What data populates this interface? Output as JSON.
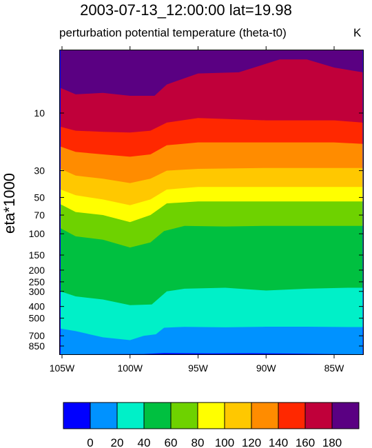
{
  "header": {
    "title": "2003-07-13_12:00:00  lat=19.98",
    "subtitle": "perturbation potential temperature (theta-t0)",
    "units": "K"
  },
  "chart_data": {
    "type": "heatmap",
    "title": "2003-07-13_12:00:00  lat=19.98",
    "subtitle": "perturbation potential temperature (theta-t0)",
    "units": "K",
    "xlabel": "",
    "ylabel": "eta*1000",
    "x_ticks": [
      "105W",
      "100W",
      "95W",
      "90W",
      "85W"
    ],
    "x_tick_values": [
      -105,
      -100,
      -95,
      -90,
      -85
    ],
    "xlim": [
      -105.1,
      -82.9
    ],
    "y_ticks": [
      "10",
      "30",
      "50",
      "70",
      "100",
      "150",
      "200",
      "250",
      "300",
      "400",
      "500",
      "700",
      "850"
    ],
    "y_tick_values": [
      10,
      30,
      50,
      70,
      100,
      150,
      200,
      250,
      300,
      400,
      500,
      700,
      850
    ],
    "ylim": [
      995,
      3
    ],
    "y_scale": "log",
    "contour_levels": [
      0,
      20,
      40,
      60,
      80,
      100,
      120,
      140,
      160,
      180
    ],
    "colorbar_labels": [
      "0",
      "20",
      "40",
      "60",
      "80",
      "100",
      "120",
      "140",
      "160",
      "180"
    ],
    "colorbar_colors": [
      "#0000ff",
      "#0092ff",
      "#00f0c8",
      "#00c040",
      "#6ed200",
      "#ffff00",
      "#ffc800",
      "#ff8c00",
      "#ff2800",
      "#c0003a",
      "#5a0082"
    ],
    "contour_boundaries": [
      {
        "level": 0,
        "x": [
          -105.1,
          -99,
          -97.5,
          -94,
          -91,
          -88,
          -85,
          -82.9
        ],
        "y": [
          995,
          990,
          972,
          978,
          976,
          982,
          992,
          995
        ]
      },
      {
        "level": 20,
        "x": [
          -105.1,
          -104,
          -102,
          -100,
          -99,
          -98.1,
          -97.5,
          -96,
          -93,
          -90,
          -87,
          -84,
          -82.9
        ],
        "y": [
          610,
          640,
          720,
          760,
          700,
          680,
          600,
          590,
          595,
          588,
          588,
          592,
          592
        ]
      },
      {
        "level": 40,
        "x": [
          -105.1,
          -104,
          -102,
          -100,
          -98.4,
          -97.3,
          -96,
          -93,
          -90,
          -87,
          -84,
          -82.9
        ],
        "y": [
          300,
          330,
          350,
          390,
          385,
          300,
          285,
          280,
          295,
          285,
          280,
          280
        ]
      },
      {
        "level": 60,
        "x": [
          -105.1,
          -104,
          -102,
          -100,
          -98.5,
          -97.5,
          -96,
          -93,
          -90,
          -87,
          -84,
          -82.9
        ],
        "y": [
          90,
          105,
          112,
          130,
          118,
          95,
          86,
          87,
          86,
          86,
          86,
          86
        ]
      },
      {
        "level": 80,
        "x": [
          -105.1,
          -104,
          -102,
          -100,
          -98.5,
          -97.3,
          -95,
          -90,
          -85,
          -82.9
        ],
        "y": [
          57,
          66,
          70,
          80,
          70,
          56,
          54,
          54,
          54,
          54
        ]
      },
      {
        "level": 100,
        "x": [
          -105.1,
          -104,
          -102,
          -100,
          -98.5,
          -97.3,
          -95,
          -90,
          -85,
          -82.9
        ],
        "y": [
          43,
          48,
          52,
          58,
          52,
          43,
          41,
          41,
          41,
          41
        ]
      },
      {
        "level": 120,
        "x": [
          -105.1,
          -104,
          -102,
          -100,
          -98.5,
          -97.3,
          -95,
          -90,
          -85,
          -82.9
        ],
        "y": [
          29,
          33,
          35,
          38,
          35,
          30,
          29,
          28.5,
          28.5,
          28.5
        ]
      },
      {
        "level": 140,
        "x": [
          -105.1,
          -104,
          -102,
          -100,
          -98.5,
          -97.3,
          -95,
          -90,
          -85,
          -82.9
        ],
        "y": [
          19,
          21,
          22,
          23,
          22,
          18.5,
          17.5,
          17.5,
          17.5,
          18
        ]
      },
      {
        "level": 160,
        "x": [
          -105.1,
          -104,
          -102,
          -100,
          -98.5,
          -97.3,
          -95,
          -90,
          -85,
          -82.9
        ],
        "y": [
          13,
          14,
          14.3,
          14.5,
          14,
          12,
          11,
          11.5,
          11.5,
          12
        ]
      },
      {
        "level": 180,
        "x": [
          -105.1,
          -104,
          -102,
          -100,
          -98.2,
          -97.3,
          -95,
          -92,
          -89,
          -87,
          -85,
          -82.9
        ],
        "y": [
          6.2,
          7,
          6.8,
          7.2,
          7.2,
          5.8,
          4.7,
          4.6,
          3.6,
          3.6,
          4.2,
          4.6
        ]
      }
    ]
  }
}
